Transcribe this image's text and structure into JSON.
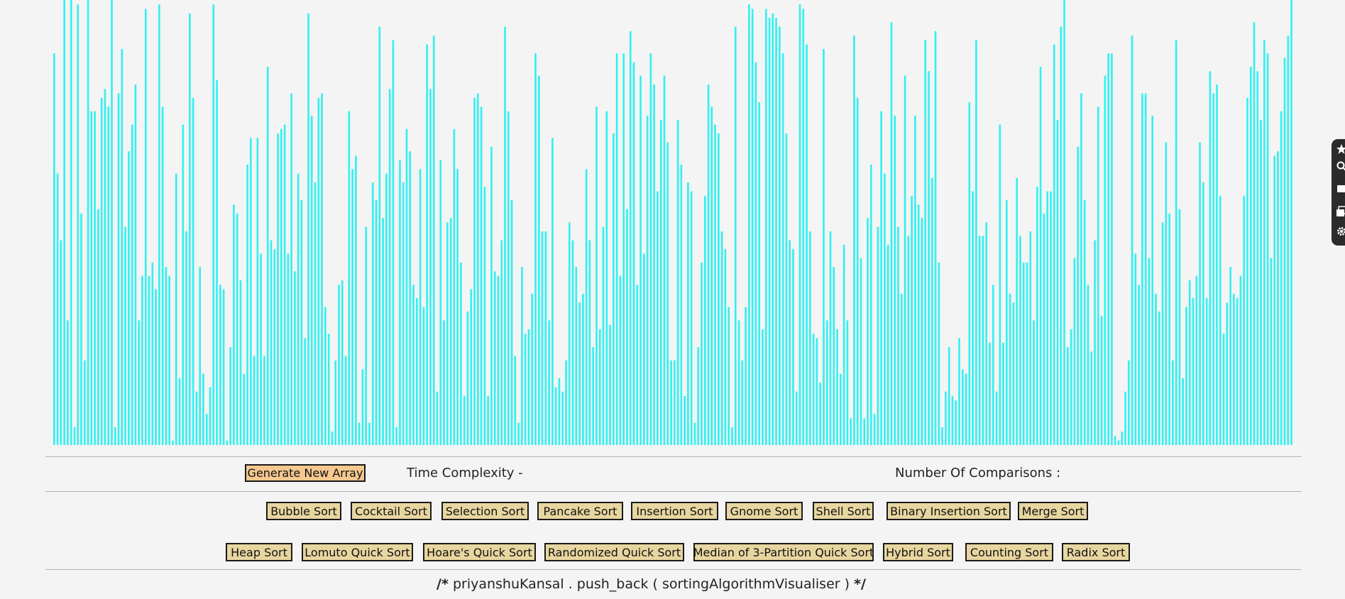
{
  "controls": {
    "generate_label": "Generate New Array",
    "time_complexity_label": "Time Complexity -",
    "comparisons_label": "Number Of Comparisons :"
  },
  "algorithms_row1": [
    "Bubble Sort",
    "Cocktail Sort",
    "Selection Sort",
    "Pancake Sort",
    "Insertion Sort",
    "Gnome Sort",
    "Shell Sort",
    "Binary Insertion Sort",
    "Merge Sort"
  ],
  "algorithms_row2": [
    "Heap Sort",
    "Lomuto Quick Sort",
    "Hoare's Quick Sort",
    "Randomized Quick Sort",
    "Median of 3-Partition Quick Sort",
    "Hybrid Sort",
    "Counting Sort",
    "Radix Sort"
  ],
  "footer": {
    "open": "/*",
    "text": "priyanshuKansal . push_back ( sortingAlgorithmVisualiser )",
    "close": "*/"
  },
  "side_panel_icons": [
    "star-icon",
    "search-icon",
    "square-icon",
    "gallery-icon",
    "gear-icon"
  ],
  "colors": {
    "bar": "#33f0f0",
    "button": "#e8d6a0",
    "generate_button": "#f5c88f",
    "background": "#f4f4f4"
  },
  "array_values": [
    88,
    61,
    46,
    100,
    28,
    100,
    4,
    99,
    52,
    19,
    100,
    75,
    75,
    53,
    78,
    80,
    76,
    100,
    4,
    79,
    89,
    49,
    66,
    72,
    81,
    28,
    38,
    98,
    38,
    41,
    35,
    99,
    76,
    40,
    38,
    1,
    61,
    15,
    72,
    48,
    97,
    78,
    12,
    40,
    16,
    7,
    13,
    99,
    82,
    36,
    35,
    1,
    22,
    54,
    52,
    37,
    16,
    63,
    69,
    20,
    69,
    43,
    20,
    85,
    46,
    44,
    70,
    71,
    72,
    43,
    79,
    39,
    61,
    55,
    24,
    97,
    74,
    59,
    78,
    79,
    31,
    25,
    3,
    19,
    36,
    37,
    20,
    75,
    62,
    65,
    5,
    17,
    49,
    5,
    59,
    55,
    94,
    51,
    61,
    80,
    91,
    4,
    64,
    59,
    71,
    66,
    36,
    33,
    62,
    31,
    90,
    80,
    92,
    12,
    64,
    28,
    50,
    51,
    71,
    62,
    41,
    11,
    30,
    35,
    78,
    79,
    76,
    58,
    11,
    67,
    39,
    38,
    46,
    94,
    75,
    55,
    20,
    5,
    40,
    25,
    26,
    34,
    88,
    83,
    48,
    48,
    28,
    69,
    13,
    15,
    12,
    19,
    50,
    46,
    40,
    32,
    34,
    62,
    46,
    22,
    76,
    26,
    49,
    75,
    27,
    70,
    88,
    38,
    88,
    53,
    93,
    86,
    36,
    83,
    43,
    74,
    88,
    81,
    57,
    73,
    83,
    68,
    19,
    19,
    73,
    63,
    11,
    59,
    57,
    5,
    22,
    41,
    56,
    81,
    76,
    72,
    70,
    48,
    44,
    31,
    4,
    94,
    28,
    19,
    31,
    99,
    98,
    86,
    77,
    26,
    98,
    96,
    97,
    96,
    94,
    88,
    70,
    46,
    44,
    12,
    99,
    98,
    90,
    48,
    25,
    24,
    14,
    89,
    28,
    48,
    40,
    26,
    16,
    45,
    28,
    6,
    92,
    78,
    42,
    6,
    51,
    63,
    7,
    49,
    75,
    61,
    45,
    95,
    74,
    49,
    34,
    83,
    47,
    56,
    74,
    54,
    51,
    91,
    84,
    60,
    93,
    41,
    4,
    12,
    22,
    11,
    10,
    24,
    17,
    16,
    77,
    57,
    91,
    47,
    47,
    50,
    23,
    36,
    12,
    72,
    23,
    55,
    34,
    32,
    60,
    47,
    41,
    41,
    48,
    28,
    58,
    85,
    52,
    57,
    57,
    90,
    73,
    94,
    100,
    22,
    26,
    42,
    67,
    79,
    55,
    36,
    21,
    46,
    76,
    29,
    83,
    88,
    88,
    2,
    1,
    3,
    12,
    19,
    92,
    43,
    36,
    79,
    79,
    42,
    74,
    34,
    30,
    50,
    68,
    52,
    19,
    91,
    53,
    15,
    31,
    37,
    33,
    38,
    68,
    59,
    33,
    84,
    79,
    81,
    56,
    25,
    32,
    40,
    34,
    33,
    38,
    56,
    78,
    85,
    95,
    84,
    73,
    91,
    88,
    42,
    65,
    66,
    75,
    87,
    92,
    100
  ]
}
